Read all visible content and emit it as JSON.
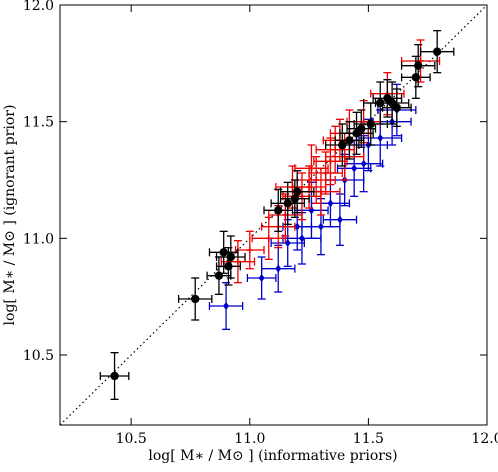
{
  "chart_data": {
    "type": "scatter",
    "xlabel": "log[ M∗ / M⊙ ] (informative priors)",
    "ylabel": "log[ M∗ / M⊙ ] (ignorant prior)",
    "xlim": [
      10.2,
      12.0
    ],
    "ylim": [
      10.2,
      12.0
    ],
    "xticks": [
      10.5,
      11.0,
      11.5,
      12.0
    ],
    "yticks": [
      10.5,
      11.0,
      11.5,
      12.0
    ],
    "xtick_labels": [
      "10.5",
      "11.0",
      "11.5",
      "12.0"
    ],
    "ytick_labels": [
      "10.5",
      "11.0",
      "11.5",
      "12.0"
    ],
    "grid": false,
    "reference_line": {
      "style": "dotted",
      "color": "#000000",
      "from": [
        10.2,
        10.2
      ],
      "to": [
        12.0,
        12.0
      ]
    },
    "series": [
      {
        "color": "#0000cc",
        "marker": "diamond",
        "points": [
          {
            "x": 10.9,
            "y": 10.71,
            "xerr": 0.07,
            "yerr": 0.1
          },
          {
            "x": 11.05,
            "y": 10.83,
            "xerr": 0.06,
            "yerr": 0.09
          },
          {
            "x": 11.12,
            "y": 10.87,
            "xerr": 0.07,
            "yerr": 0.1
          },
          {
            "x": 11.22,
            "y": 11.0,
            "xerr": 0.08,
            "yerr": 0.11
          },
          {
            "x": 11.3,
            "y": 11.05,
            "xerr": 0.08,
            "yerr": 0.12
          },
          {
            "x": 11.38,
            "y": 11.08,
            "xerr": 0.07,
            "yerr": 0.11
          },
          {
            "x": 11.2,
            "y": 11.05,
            "xerr": 0.06,
            "yerr": 0.1
          },
          {
            "x": 11.26,
            "y": 11.12,
            "xerr": 0.07,
            "yerr": 0.12
          },
          {
            "x": 11.34,
            "y": 11.15,
            "xerr": 0.08,
            "yerr": 0.1
          },
          {
            "x": 11.4,
            "y": 11.25,
            "xerr": 0.08,
            "yerr": 0.11
          },
          {
            "x": 11.44,
            "y": 11.3,
            "xerr": 0.07,
            "yerr": 0.12
          },
          {
            "x": 11.5,
            "y": 11.4,
            "xerr": 0.08,
            "yerr": 0.11
          },
          {
            "x": 11.55,
            "y": 11.43,
            "xerr": 0.09,
            "yerr": 0.12
          },
          {
            "x": 11.6,
            "y": 11.5,
            "xerr": 0.08,
            "yerr": 0.1
          },
          {
            "x": 11.62,
            "y": 11.55,
            "xerr": 0.08,
            "yerr": 0.11
          },
          {
            "x": 11.16,
            "y": 10.98,
            "xerr": 0.07,
            "yerr": 0.1
          },
          {
            "x": 11.48,
            "y": 11.32,
            "xerr": 0.08,
            "yerr": 0.12
          }
        ]
      },
      {
        "color": "#ee0000",
        "marker": "cross",
        "points": [
          {
            "x": 10.95,
            "y": 10.9,
            "xerr": 0.07,
            "yerr": 0.09
          },
          {
            "x": 11.0,
            "y": 10.95,
            "xerr": 0.06,
            "yerr": 0.08
          },
          {
            "x": 11.08,
            "y": 11.0,
            "xerr": 0.07,
            "yerr": 0.09
          },
          {
            "x": 11.15,
            "y": 11.1,
            "xerr": 0.07,
            "yerr": 0.09
          },
          {
            "x": 11.22,
            "y": 11.18,
            "xerr": 0.08,
            "yerr": 0.1
          },
          {
            "x": 11.25,
            "y": 11.22,
            "xerr": 0.07,
            "yerr": 0.09
          },
          {
            "x": 11.28,
            "y": 11.25,
            "xerr": 0.08,
            "yerr": 0.1
          },
          {
            "x": 11.32,
            "y": 11.28,
            "xerr": 0.07,
            "yerr": 0.09
          },
          {
            "x": 11.34,
            "y": 11.33,
            "xerr": 0.07,
            "yerr": 0.1
          },
          {
            "x": 11.36,
            "y": 11.38,
            "xerr": 0.08,
            "yerr": 0.1
          },
          {
            "x": 11.38,
            "y": 11.42,
            "xerr": 0.07,
            "yerr": 0.09
          },
          {
            "x": 11.42,
            "y": 11.45,
            "xerr": 0.08,
            "yerr": 0.1
          },
          {
            "x": 11.3,
            "y": 11.2,
            "xerr": 0.08,
            "yerr": 0.1
          },
          {
            "x": 11.18,
            "y": 11.22,
            "xerr": 0.07,
            "yerr": 0.09
          },
          {
            "x": 11.26,
            "y": 11.3,
            "xerr": 0.07,
            "yerr": 0.1
          },
          {
            "x": 11.4,
            "y": 11.35,
            "xerr": 0.08,
            "yerr": 0.1
          },
          {
            "x": 11.48,
            "y": 11.5,
            "xerr": 0.07,
            "yerr": 0.09
          },
          {
            "x": 11.58,
            "y": 11.62,
            "xerr": 0.07,
            "yerr": 0.09
          },
          {
            "x": 11.72,
            "y": 11.76,
            "xerr": 0.08,
            "yerr": 0.09
          },
          {
            "x": 11.12,
            "y": 11.05,
            "xerr": 0.07,
            "yerr": 0.09
          }
        ]
      },
      {
        "color": "#000000",
        "marker": "circle",
        "points": [
          {
            "x": 10.43,
            "y": 10.41,
            "xerr": 0.06,
            "yerr": 0.1
          },
          {
            "x": 10.77,
            "y": 10.74,
            "xerr": 0.07,
            "yerr": 0.09
          },
          {
            "x": 10.87,
            "y": 10.84,
            "xerr": 0.05,
            "yerr": 0.08
          },
          {
            "x": 10.89,
            "y": 10.94,
            "xerr": 0.06,
            "yerr": 0.09
          },
          {
            "x": 10.91,
            "y": 10.88,
            "xerr": 0.05,
            "yerr": 0.08
          },
          {
            "x": 10.92,
            "y": 10.92,
            "xerr": 0.06,
            "yerr": 0.09
          },
          {
            "x": 11.12,
            "y": 11.12,
            "xerr": 0.06,
            "yerr": 0.09
          },
          {
            "x": 11.16,
            "y": 11.15,
            "xerr": 0.07,
            "yerr": 0.09
          },
          {
            "x": 11.19,
            "y": 11.17,
            "xerr": 0.06,
            "yerr": 0.08
          },
          {
            "x": 11.2,
            "y": 11.2,
            "xerr": 0.07,
            "yerr": 0.09
          },
          {
            "x": 11.39,
            "y": 11.4,
            "xerr": 0.07,
            "yerr": 0.09
          },
          {
            "x": 11.42,
            "y": 11.42,
            "xerr": 0.06,
            "yerr": 0.08
          },
          {
            "x": 11.45,
            "y": 11.45,
            "xerr": 0.07,
            "yerr": 0.09
          },
          {
            "x": 11.47,
            "y": 11.47,
            "xerr": 0.06,
            "yerr": 0.08
          },
          {
            "x": 11.51,
            "y": 11.49,
            "xerr": 0.07,
            "yerr": 0.09
          },
          {
            "x": 11.55,
            "y": 11.58,
            "xerr": 0.07,
            "yerr": 0.09
          },
          {
            "x": 11.58,
            "y": 11.6,
            "xerr": 0.06,
            "yerr": 0.08
          },
          {
            "x": 11.6,
            "y": 11.58,
            "xerr": 0.07,
            "yerr": 0.09
          },
          {
            "x": 11.62,
            "y": 11.56,
            "xerr": 0.06,
            "yerr": 0.08
          },
          {
            "x": 11.7,
            "y": 11.69,
            "xerr": 0.06,
            "yerr": 0.09
          },
          {
            "x": 11.71,
            "y": 11.74,
            "xerr": 0.07,
            "yerr": 0.09
          },
          {
            "x": 11.79,
            "y": 11.8,
            "xerr": 0.07,
            "yerr": 0.09
          }
        ]
      }
    ]
  }
}
